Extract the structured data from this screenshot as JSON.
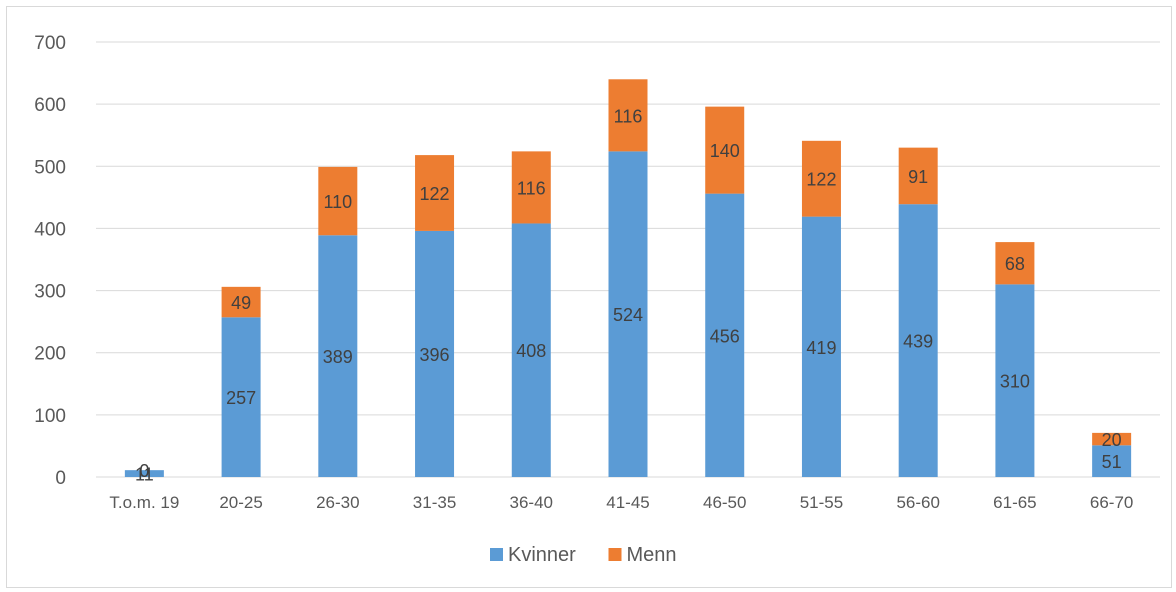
{
  "chart_data": {
    "type": "bar",
    "stacked": true,
    "categories": [
      "T.o.m. 19",
      "20-25",
      "26-30",
      "31-35",
      "36-40",
      "41-45",
      "46-50",
      "51-55",
      "56-60",
      "61-65",
      "66-70"
    ],
    "series": [
      {
        "name": "Kvinner",
        "color": "#5b9bd5",
        "values": [
          11,
          257,
          389,
          396,
          408,
          524,
          456,
          419,
          439,
          310,
          51
        ]
      },
      {
        "name": "Menn",
        "color": "#ed7d31",
        "values": [
          0,
          49,
          110,
          122,
          116,
          116,
          140,
          122,
          91,
          68,
          20
        ]
      }
    ],
    "yticks": [
      0,
      100,
      200,
      300,
      400,
      500,
      600,
      700
    ],
    "ylim": [
      0,
      700
    ],
    "grid": true,
    "legend": "bottom",
    "gridline_color": "#d9d9d9",
    "axis_text_color": "#595959"
  }
}
